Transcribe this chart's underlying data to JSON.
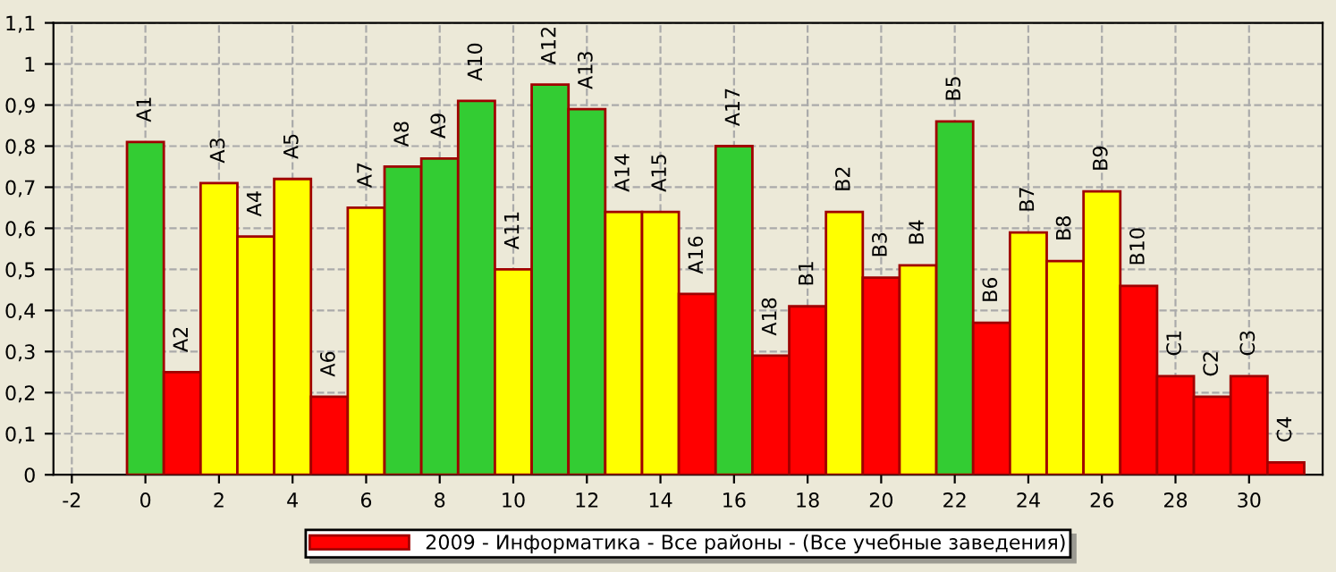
{
  "chart_data": {
    "type": "bar",
    "x": [
      0,
      1,
      2,
      3,
      4,
      5,
      6,
      7,
      8,
      9,
      10,
      11,
      12,
      13,
      14,
      15,
      16,
      17,
      18,
      19,
      20,
      21,
      22,
      23,
      24,
      25,
      26,
      27,
      28,
      29,
      30,
      31
    ],
    "series": [
      {
        "name": "2009 - Информатика - Все районы - (Все учебные заведения)",
        "color": "#ff0000",
        "values": [
          0.81,
          0.25,
          0.71,
          0.58,
          0.72,
          0.19,
          0.65,
          0.75,
          0.77,
          0.91,
          0.5,
          0.95,
          0.89,
          0.64,
          0.64,
          0.44,
          0.8,
          0.29,
          0.41,
          0.64,
          0.48,
          0.51,
          0.86,
          0.37,
          0.59,
          0.52,
          0.69,
          0.46,
          0.24,
          0.19,
          0.24,
          0.03
        ],
        "colors": [
          "#33cc33",
          "#ff0000",
          "#ffff00",
          "#ffff00",
          "#ffff00",
          "#ff0000",
          "#ffff00",
          "#33cc33",
          "#33cc33",
          "#33cc33",
          "#ffff00",
          "#33cc33",
          "#33cc33",
          "#ffff00",
          "#ffff00",
          "#ff0000",
          "#33cc33",
          "#ff0000",
          "#ff0000",
          "#ffff00",
          "#ff0000",
          "#ffff00",
          "#33cc33",
          "#ff0000",
          "#ffff00",
          "#ffff00",
          "#ffff00",
          "#ff0000",
          "#ff0000",
          "#ff0000",
          "#ff0000",
          "#ff0000"
        ]
      }
    ],
    "annotations": [
      {
        "text": "A1",
        "x": 0,
        "y": 0.81
      },
      {
        "text": "A2",
        "x": 1,
        "y": 0.25
      },
      {
        "text": "A3",
        "x": 2,
        "y": 0.71
      },
      {
        "text": "A4",
        "x": 3,
        "y": 0.58
      },
      {
        "text": "A5",
        "x": 4,
        "y": 0.72
      },
      {
        "text": "A6",
        "x": 5,
        "y": 0.19
      },
      {
        "text": "A7",
        "x": 6,
        "y": 0.65
      },
      {
        "text": "A8",
        "x": 7,
        "y": 0.75
      },
      {
        "text": "A9",
        "x": 8,
        "y": 0.77
      },
      {
        "text": "A10",
        "x": 9,
        "y": 0.91
      },
      {
        "text": "A11",
        "x": 10,
        "y": 0.5
      },
      {
        "text": "A12",
        "x": 11,
        "y": 0.95
      },
      {
        "text": "A13",
        "x": 12,
        "y": 0.89
      },
      {
        "text": "A14",
        "x": 13,
        "y": 0.64
      },
      {
        "text": "A15",
        "x": 14,
        "y": 0.64
      },
      {
        "text": "A16",
        "x": 15,
        "y": 0.44
      },
      {
        "text": "A17",
        "x": 16,
        "y": 0.8
      },
      {
        "text": "A18",
        "x": 17,
        "y": 0.29
      },
      {
        "text": "B1",
        "x": 18,
        "y": 0.41
      },
      {
        "text": "B2",
        "x": 19,
        "y": 0.64
      },
      {
        "text": "B3",
        "x": 20,
        "y": 0.48
      },
      {
        "text": "B4",
        "x": 21,
        "y": 0.51
      },
      {
        "text": "B5",
        "x": 22,
        "y": 0.86
      },
      {
        "text": "B6",
        "x": 23,
        "y": 0.37
      },
      {
        "text": "B7",
        "x": 24,
        "y": 0.59
      },
      {
        "text": "B8",
        "x": 25,
        "y": 0.52
      },
      {
        "text": "B9",
        "x": 26,
        "y": 0.69
      },
      {
        "text": "B10",
        "x": 27,
        "y": 0.46
      },
      {
        "text": "C1",
        "x": 28,
        "y": 0.24
      },
      {
        "text": "C2",
        "x": 29,
        "y": 0.19
      },
      {
        "text": "C3",
        "x": 30,
        "y": 0.24
      },
      {
        "text": "C4",
        "x": 31,
        "y": 0.03
      }
    ],
    "xlim": [
      -2.5,
      32
    ],
    "xticks": [
      -2,
      0,
      2,
      4,
      6,
      8,
      10,
      12,
      14,
      16,
      18,
      20,
      22,
      24,
      26,
      28,
      30
    ],
    "ylim": [
      0,
      1.1
    ],
    "yticks": [
      0,
      {
        "value": 0.1,
        "label": "0,1"
      },
      {
        "value": 0.2,
        "label": "0,2"
      },
      {
        "value": 0.3,
        "label": "0,3"
      },
      {
        "value": 0.4,
        "label": "0,4"
      },
      {
        "value": 0.5,
        "label": "0,5"
      },
      {
        "value": 0.6,
        "label": "0,6"
      },
      {
        "value": 0.7,
        "label": "0,7"
      },
      {
        "value": 0.8,
        "label": "0,8"
      },
      {
        "value": 0.9,
        "label": "0,9"
      },
      1,
      {
        "value": 1.1,
        "label": "1,1"
      }
    ],
    "grid": true,
    "legend": "bottom"
  }
}
